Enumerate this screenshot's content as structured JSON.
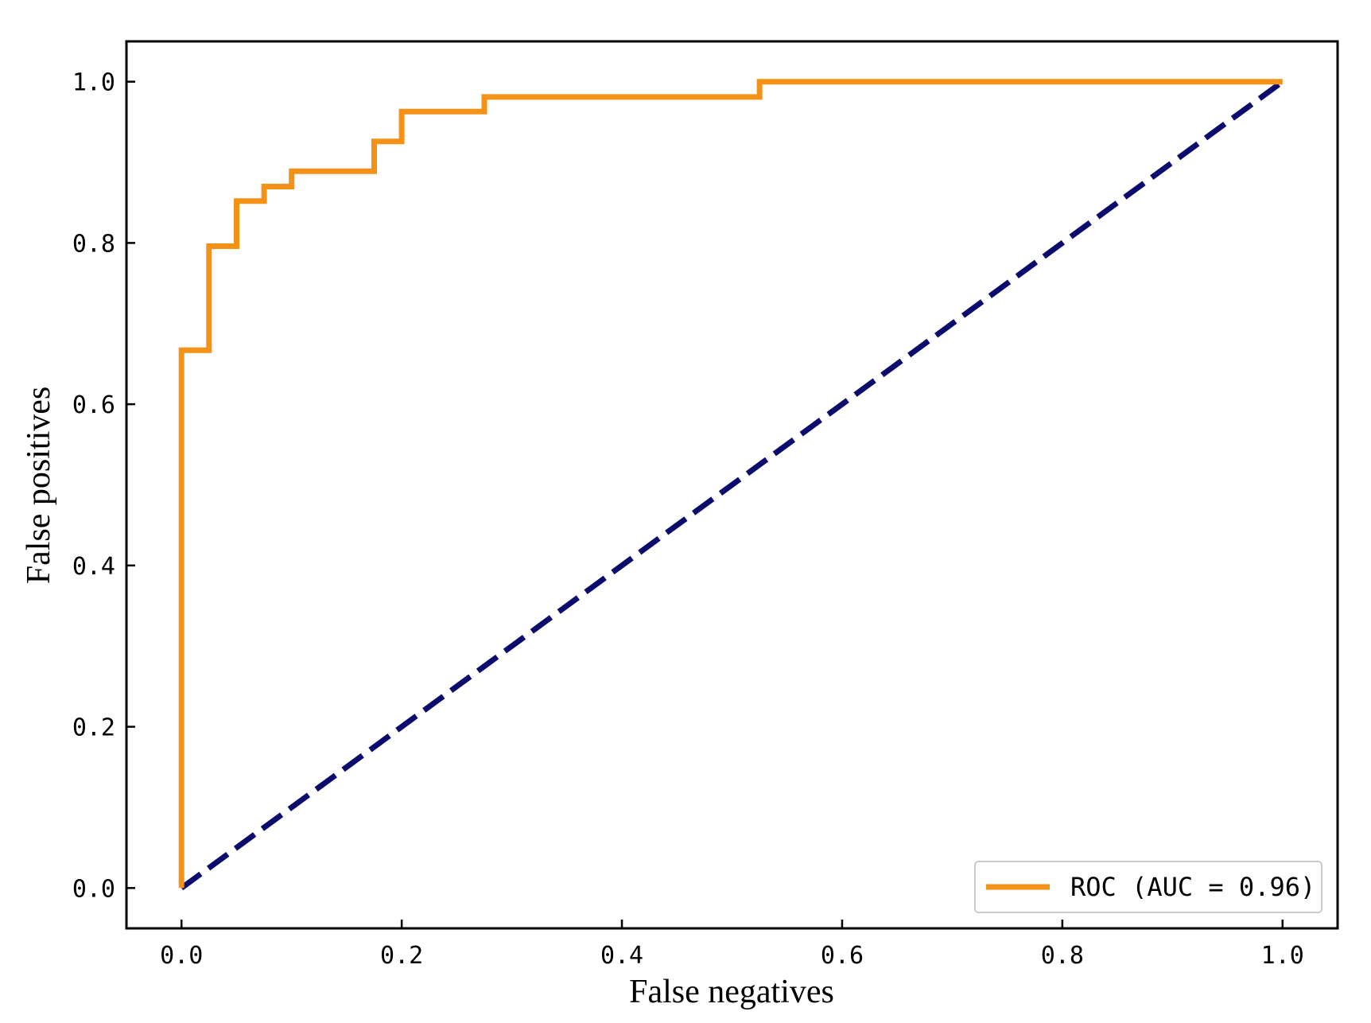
{
  "chart_data": {
    "type": "line",
    "title": "",
    "xlabel": "False negatives",
    "ylabel": "False positives",
    "xlim": [
      -0.05,
      1.05
    ],
    "ylim": [
      -0.05,
      1.05
    ],
    "x_ticks": [
      0.0,
      0.2,
      0.4,
      0.6,
      0.8,
      1.0
    ],
    "x_tick_labels": [
      "0.0",
      "0.2",
      "0.4",
      "0.6",
      "0.8",
      "1.0"
    ],
    "y_ticks": [
      0.0,
      0.2,
      0.4,
      0.6,
      0.8,
      1.0
    ],
    "y_tick_labels": [
      "0.0",
      "0.2",
      "0.4",
      "0.6",
      "0.8",
      "1.0"
    ],
    "grid": false,
    "legend_position": "bottom-right",
    "series": [
      {
        "name": "ROC (AUC = 0.96)",
        "color": "#f39217",
        "style": "solid",
        "x": [
          0.0,
          0.0,
          0.025,
          0.025,
          0.05,
          0.05,
          0.075,
          0.075,
          0.1,
          0.1,
          0.175,
          0.175,
          0.2,
          0.2,
          0.275,
          0.275,
          0.525,
          0.525,
          1.0
        ],
        "y": [
          0.0,
          0.667,
          0.667,
          0.796,
          0.796,
          0.852,
          0.852,
          0.87,
          0.87,
          0.889,
          0.889,
          0.926,
          0.926,
          0.963,
          0.963,
          0.981,
          0.981,
          1.0,
          1.0
        ]
      },
      {
        "name": "",
        "color": "#0b0b6e",
        "style": "dashed",
        "x": [
          0.0,
          1.0
        ],
        "y": [
          0.0,
          1.0
        ]
      }
    ]
  }
}
